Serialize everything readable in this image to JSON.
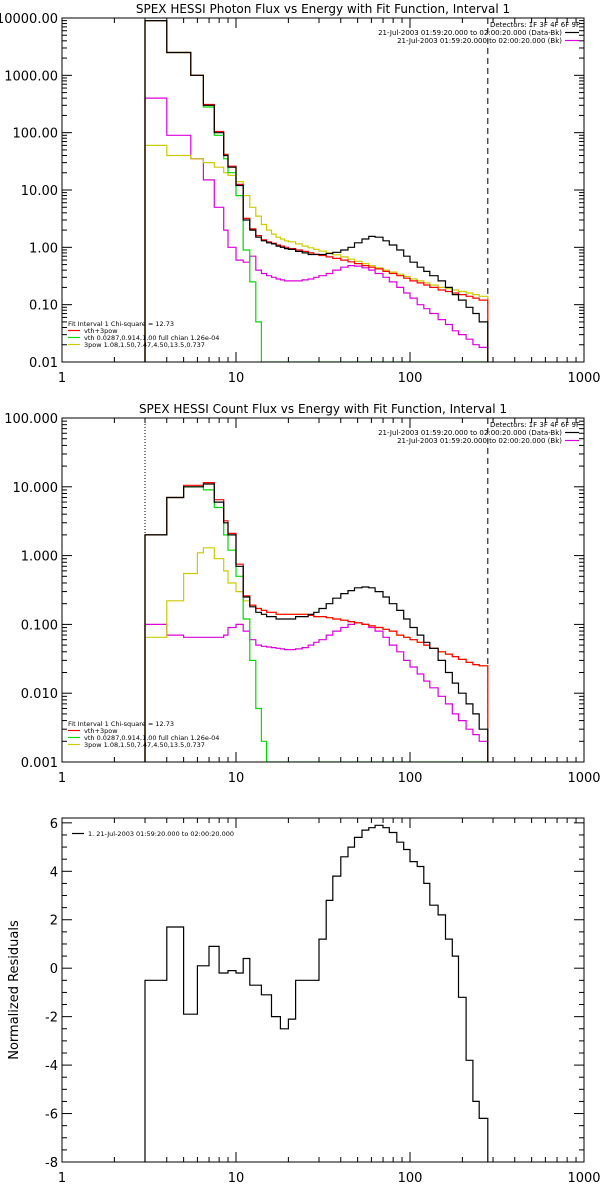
{
  "colors": {
    "background": "#ffffff",
    "axis": "#000000",
    "data": "#000000",
    "fit_total": "#ff0000",
    "vth": "#00dd00",
    "bpow": "#cccc00",
    "background_series": "#dd00dd"
  },
  "chart_data": [
    {
      "type": "line",
      "step": true,
      "xscale": "log",
      "yscale": "log",
      "title": "SPEX HESSI Photon Flux vs Energy with Fit Function, Interval 1",
      "xlabel": "",
      "ylabel": "",
      "xlim": [
        1,
        1000
      ],
      "ylim": [
        0.01,
        10000
      ],
      "xticks": [
        1,
        10,
        100,
        1000
      ],
      "xtick_labels": [
        "1",
        "10",
        "100",
        "1000"
      ],
      "yticks": [
        0.01,
        0.1,
        1,
        10,
        100,
        1000,
        10000
      ],
      "ytick_labels": [
        "0.01",
        "0.10",
        "1.00",
        "10.00",
        "100.00",
        "1000.00",
        "10000.00"
      ],
      "legend_top_right": [
        "Detectors: 1F 3F 4F 6F 9F",
        "21-Jul-2003 01:59:20.000 to 02:00:20.000 (Data-Bk)",
        "21-Jul-2003 01:59:20.000 to 02:00:20.000 (Bk)"
      ],
      "legend_bottom_left": [
        "Fit Interval 1    Chi-square = 12.73",
        "vth+3pow",
        "vth 0.0287,0.914,1.00  full chian 1.26e-04",
        "3pow 1.08,1.50,7.47,4.50,13.5,0.737"
      ],
      "vlines": [
        {
          "x": 3,
          "style": "dotted"
        },
        {
          "x": 280,
          "style": "dashed"
        }
      ],
      "x": [
        3,
        3.5,
        4,
        4.5,
        5,
        5.5,
        6,
        6.5,
        7,
        7.5,
        8,
        8.5,
        9,
        10,
        11,
        12,
        13,
        14,
        15,
        16,
        17,
        18,
        19,
        20,
        22,
        24,
        26,
        28,
        30,
        33,
        36,
        40,
        44,
        48,
        53,
        58,
        63,
        70,
        76,
        84,
        92,
        100,
        110,
        120,
        130,
        145,
        160,
        175,
        190,
        210,
        230,
        250,
        280
      ],
      "series": [
        {
          "name": "data",
          "color": "#000000",
          "values": [
            9000,
            9000,
            2500,
            2500,
            2500,
            1000,
            1000,
            300,
            300,
            100,
            100,
            40,
            25,
            12,
            3,
            2.0,
            1.5,
            1.3,
            1.2,
            1.15,
            1.05,
            1.0,
            0.95,
            0.92,
            0.85,
            0.8,
            0.75,
            0.75,
            0.75,
            0.78,
            0.82,
            0.9,
            1.0,
            1.2,
            1.4,
            1.55,
            1.5,
            1.3,
            1.1,
            0.9,
            0.7,
            0.55,
            0.45,
            0.38,
            0.32,
            0.26,
            0.2,
            0.15,
            0.12,
            0.09,
            0.07,
            0.05,
            0.03
          ]
        },
        {
          "name": "vth+3pow",
          "color": "#ff0000",
          "values": [
            9000,
            9000,
            2500,
            2500,
            2500,
            1000,
            1000,
            310,
            310,
            105,
            105,
            42,
            26,
            12.5,
            3.2,
            2.1,
            1.6,
            1.35,
            1.25,
            1.18,
            1.1,
            1.05,
            1.0,
            0.95,
            0.9,
            0.85,
            0.8,
            0.76,
            0.72,
            0.68,
            0.64,
            0.6,
            0.56,
            0.52,
            0.48,
            0.45,
            0.42,
            0.38,
            0.35,
            0.32,
            0.29,
            0.26,
            0.24,
            0.22,
            0.2,
            0.18,
            0.17,
            0.16,
            0.15,
            0.14,
            0.13,
            0.12,
            0.12
          ]
        },
        {
          "name": "vth",
          "color": "#00dd00",
          "values": [
            9000,
            9000,
            2500,
            2500,
            2500,
            1000,
            1000,
            280,
            280,
            90,
            90,
            35,
            20,
            8,
            0.9,
            0.25,
            0.05,
            0.01,
            0.01,
            0.01,
            0.01,
            0.01,
            0.01,
            0.01,
            0.01,
            0.01,
            0.01,
            0.01,
            0.01,
            0.01,
            0.01,
            0.01,
            0.01,
            0.01,
            0.01,
            0.01,
            0.01,
            0.01,
            0.01,
            0.01,
            0.01,
            0.01,
            0.01,
            0.01,
            0.01,
            0.01,
            0.01,
            0.01,
            0.01,
            0.01,
            0.01,
            0.01,
            0.01
          ]
        },
        {
          "name": "3pow",
          "color": "#cccc00",
          "values": [
            60,
            60,
            40,
            40,
            40,
            35,
            35,
            30,
            30,
            25,
            25,
            20,
            18,
            14,
            8,
            5,
            3.5,
            2.5,
            2.0,
            1.7,
            1.5,
            1.4,
            1.3,
            1.25,
            1.15,
            1.05,
            0.98,
            0.92,
            0.86,
            0.8,
            0.74,
            0.68,
            0.62,
            0.57,
            0.52,
            0.48,
            0.44,
            0.4,
            0.37,
            0.34,
            0.31,
            0.28,
            0.26,
            0.24,
            0.22,
            0.2,
            0.19,
            0.18,
            0.17,
            0.16,
            0.15,
            0.14,
            0.14
          ]
        },
        {
          "name": "background",
          "color": "#dd00dd",
          "values": [
            400,
            400,
            90,
            90,
            90,
            35,
            35,
            15,
            15,
            5,
            5,
            2.0,
            1.0,
            0.6,
            0.55,
            0.7,
            0.4,
            0.35,
            0.32,
            0.3,
            0.28,
            0.27,
            0.26,
            0.26,
            0.26,
            0.27,
            0.28,
            0.3,
            0.32,
            0.35,
            0.4,
            0.45,
            0.48,
            0.47,
            0.44,
            0.4,
            0.35,
            0.3,
            0.25,
            0.2,
            0.16,
            0.13,
            0.1,
            0.085,
            0.07,
            0.055,
            0.045,
            0.035,
            0.03,
            0.025,
            0.02,
            0.018,
            0.015
          ]
        }
      ]
    },
    {
      "type": "line",
      "step": true,
      "xscale": "log",
      "yscale": "log",
      "title": "SPEX HESSI Count Flux vs Energy with Fit Function, Interval 1",
      "xlabel": "",
      "ylabel": "",
      "xlim": [
        1,
        1000
      ],
      "ylim": [
        0.001,
        100
      ],
      "xticks": [
        1,
        10,
        100,
        1000
      ],
      "xtick_labels": [
        "1",
        "10",
        "100",
        "1000"
      ],
      "yticks": [
        0.001,
        0.01,
        0.1,
        1,
        10,
        100
      ],
      "ytick_labels": [
        "0.001",
        "0.010",
        "0.100",
        "1.000",
        "10.000",
        "100.000"
      ],
      "legend_top_right": [
        "Detectors: 1F 3F 4F 6F 9F",
        "21-Jul-2003 01:59:20.000 to 02:00:20.000 (Data-Bk)",
        "21-Jul-2003 01:59:20.000 to 02:00:20.000 (Bk)"
      ],
      "legend_bottom_left": [
        "Fit Interval 1    Chi-square = 12.73",
        "vth+3pow",
        "vth 0.0287,0.914,1.00  full chian 1.26e-04",
        "3pow 1.08,1.50,7.47,4.50,13.5,0.737"
      ],
      "vlines": [
        {
          "x": 3,
          "style": "dotted"
        },
        {
          "x": 280,
          "style": "dashed"
        }
      ],
      "x": [
        3,
        3.5,
        4,
        4.5,
        5,
        5.5,
        6,
        6.5,
        7,
        7.5,
        8,
        8.5,
        9,
        10,
        11,
        12,
        13,
        14,
        15,
        16,
        17,
        18,
        19,
        20,
        22,
        24,
        26,
        28,
        30,
        33,
        36,
        40,
        44,
        48,
        53,
        58,
        63,
        70,
        76,
        84,
        92,
        100,
        110,
        120,
        130,
        145,
        160,
        175,
        190,
        210,
        230,
        250,
        280
      ],
      "series": [
        {
          "name": "data",
          "color": "#000000",
          "values": [
            2.0,
            2.0,
            7.0,
            7.0,
            10,
            10,
            10,
            11,
            11,
            6,
            6,
            3,
            2,
            0.7,
            0.25,
            0.18,
            0.15,
            0.14,
            0.13,
            0.13,
            0.12,
            0.12,
            0.12,
            0.12,
            0.13,
            0.13,
            0.14,
            0.15,
            0.17,
            0.2,
            0.24,
            0.28,
            0.31,
            0.34,
            0.35,
            0.34,
            0.3,
            0.25,
            0.2,
            0.16,
            0.12,
            0.09,
            0.07,
            0.055,
            0.045,
            0.03,
            0.02,
            0.014,
            0.01,
            0.007,
            0.005,
            0.003,
            0.002
          ]
        },
        {
          "name": "vth+3pow",
          "color": "#ff0000",
          "values": [
            2.0,
            2.0,
            7.0,
            7.0,
            10.5,
            10.5,
            10.5,
            11.5,
            11.5,
            6.5,
            6.5,
            3.2,
            2.1,
            0.75,
            0.26,
            0.19,
            0.17,
            0.16,
            0.15,
            0.15,
            0.14,
            0.14,
            0.14,
            0.14,
            0.14,
            0.14,
            0.135,
            0.13,
            0.13,
            0.125,
            0.12,
            0.115,
            0.11,
            0.105,
            0.1,
            0.095,
            0.09,
            0.085,
            0.08,
            0.07,
            0.065,
            0.06,
            0.055,
            0.05,
            0.045,
            0.04,
            0.037,
            0.034,
            0.031,
            0.028,
            0.026,
            0.025,
            0.025
          ]
        },
        {
          "name": "vth",
          "color": "#00dd00",
          "values": [
            2.0,
            2.0,
            7.0,
            7.0,
            10,
            10,
            10,
            9,
            9,
            5,
            5,
            2,
            1.2,
            0.5,
            0.12,
            0.03,
            0.006,
            0.002,
            0.001,
            0.001,
            0.001,
            0.001,
            0.001,
            0.001,
            0.001,
            0.001,
            0.001,
            0.001,
            0.001,
            0.001,
            0.001,
            0.001,
            0.001,
            0.001,
            0.001,
            0.001,
            0.001,
            0.001,
            0.001,
            0.001,
            0.001,
            0.001,
            0.001,
            0.001,
            0.001,
            0.001,
            0.001,
            0.001,
            0.001,
            0.001,
            0.001,
            0.001,
            0.001
          ]
        },
        {
          "name": "3pow",
          "color": "#cccc00",
          "values": [
            0.065,
            0.065,
            0.22,
            0.22,
            0.55,
            0.55,
            1.1,
            1.3,
            1.3,
            0.9,
            0.9,
            0.6,
            0.4,
            0.3,
            0.22,
            0.19,
            0.17,
            0.16,
            0.15,
            0.15,
            0.14,
            0.14,
            0.14,
            0.14,
            0.14,
            0.14,
            0.135,
            0.13,
            0.13,
            0.125,
            0.12,
            0.115,
            0.11,
            0.105,
            0.1,
            0.095,
            0.09,
            0.085,
            0.08,
            0.07,
            0.065,
            0.06,
            0.055,
            0.05,
            0.045,
            0.04,
            0.037,
            0.034,
            0.031,
            0.028,
            0.026,
            0.025,
            0.025
          ]
        },
        {
          "name": "background",
          "color": "#dd00dd",
          "values": [
            0.1,
            0.1,
            0.07,
            0.07,
            0.065,
            0.065,
            0.065,
            0.065,
            0.065,
            0.065,
            0.065,
            0.07,
            0.09,
            0.1,
            0.08,
            0.06,
            0.05,
            0.048,
            0.047,
            0.046,
            0.045,
            0.044,
            0.043,
            0.043,
            0.044,
            0.046,
            0.05,
            0.055,
            0.06,
            0.07,
            0.08,
            0.09,
            0.1,
            0.105,
            0.1,
            0.09,
            0.08,
            0.065,
            0.05,
            0.04,
            0.03,
            0.024,
            0.019,
            0.015,
            0.012,
            0.009,
            0.007,
            0.005,
            0.004,
            0.003,
            0.0025,
            0.002,
            0.002
          ]
        }
      ]
    },
    {
      "type": "line",
      "step": true,
      "xscale": "log",
      "yscale": "linear",
      "title": "",
      "xlabel": "",
      "ylabel": "Normalized Residuals",
      "xlim": [
        1,
        1000
      ],
      "ylim": [
        -8,
        6.2
      ],
      "xticks": [
        1,
        10,
        100,
        1000
      ],
      "xtick_labels": [
        "1",
        "10",
        "100",
        "1000"
      ],
      "yticks": [
        -8,
        -6,
        -4,
        -2,
        0,
        2,
        4,
        6
      ],
      "ytick_labels": [
        "-8",
        "-6",
        "-4",
        "-2",
        "0",
        "2",
        "4",
        "6"
      ],
      "legend_top_left": [
        "1. 21-Jul-2003 01:59:20.000 to 02:00:20.000"
      ],
      "x": [
        3,
        4,
        4.5,
        5,
        5.5,
        6,
        6.5,
        7,
        7.5,
        8,
        8.5,
        9,
        10,
        11,
        12,
        13,
        14,
        15,
        16,
        17,
        18,
        19,
        20,
        22,
        24,
        26,
        28,
        30,
        33,
        36,
        40,
        44,
        48,
        53,
        58,
        63,
        70,
        76,
        84,
        92,
        100,
        110,
        120,
        130,
        145,
        160,
        175,
        190,
        210,
        230,
        250,
        280
      ],
      "series": [
        {
          "name": "",
          "color": "#000000",
          "values": [
            -0.5,
            1.7,
            1.7,
            -1.9,
            -1.9,
            0.1,
            0.1,
            0.9,
            0.9,
            -0.2,
            -0.2,
            -0.1,
            -0.2,
            0.4,
            -0.7,
            -0.7,
            -1.1,
            -1.1,
            -2.0,
            -2.0,
            -2.5,
            -2.5,
            -2.1,
            -0.5,
            -0.5,
            -0.5,
            -0.5,
            1.2,
            2.8,
            3.8,
            4.6,
            5.0,
            5.4,
            5.7,
            5.8,
            5.9,
            5.8,
            5.6,
            5.2,
            4.9,
            4.4,
            4.2,
            3.5,
            2.6,
            2.2,
            1.2,
            0.5,
            -1.2,
            -3.8,
            -5.5,
            -6.2,
            -8
          ]
        }
      ]
    }
  ]
}
